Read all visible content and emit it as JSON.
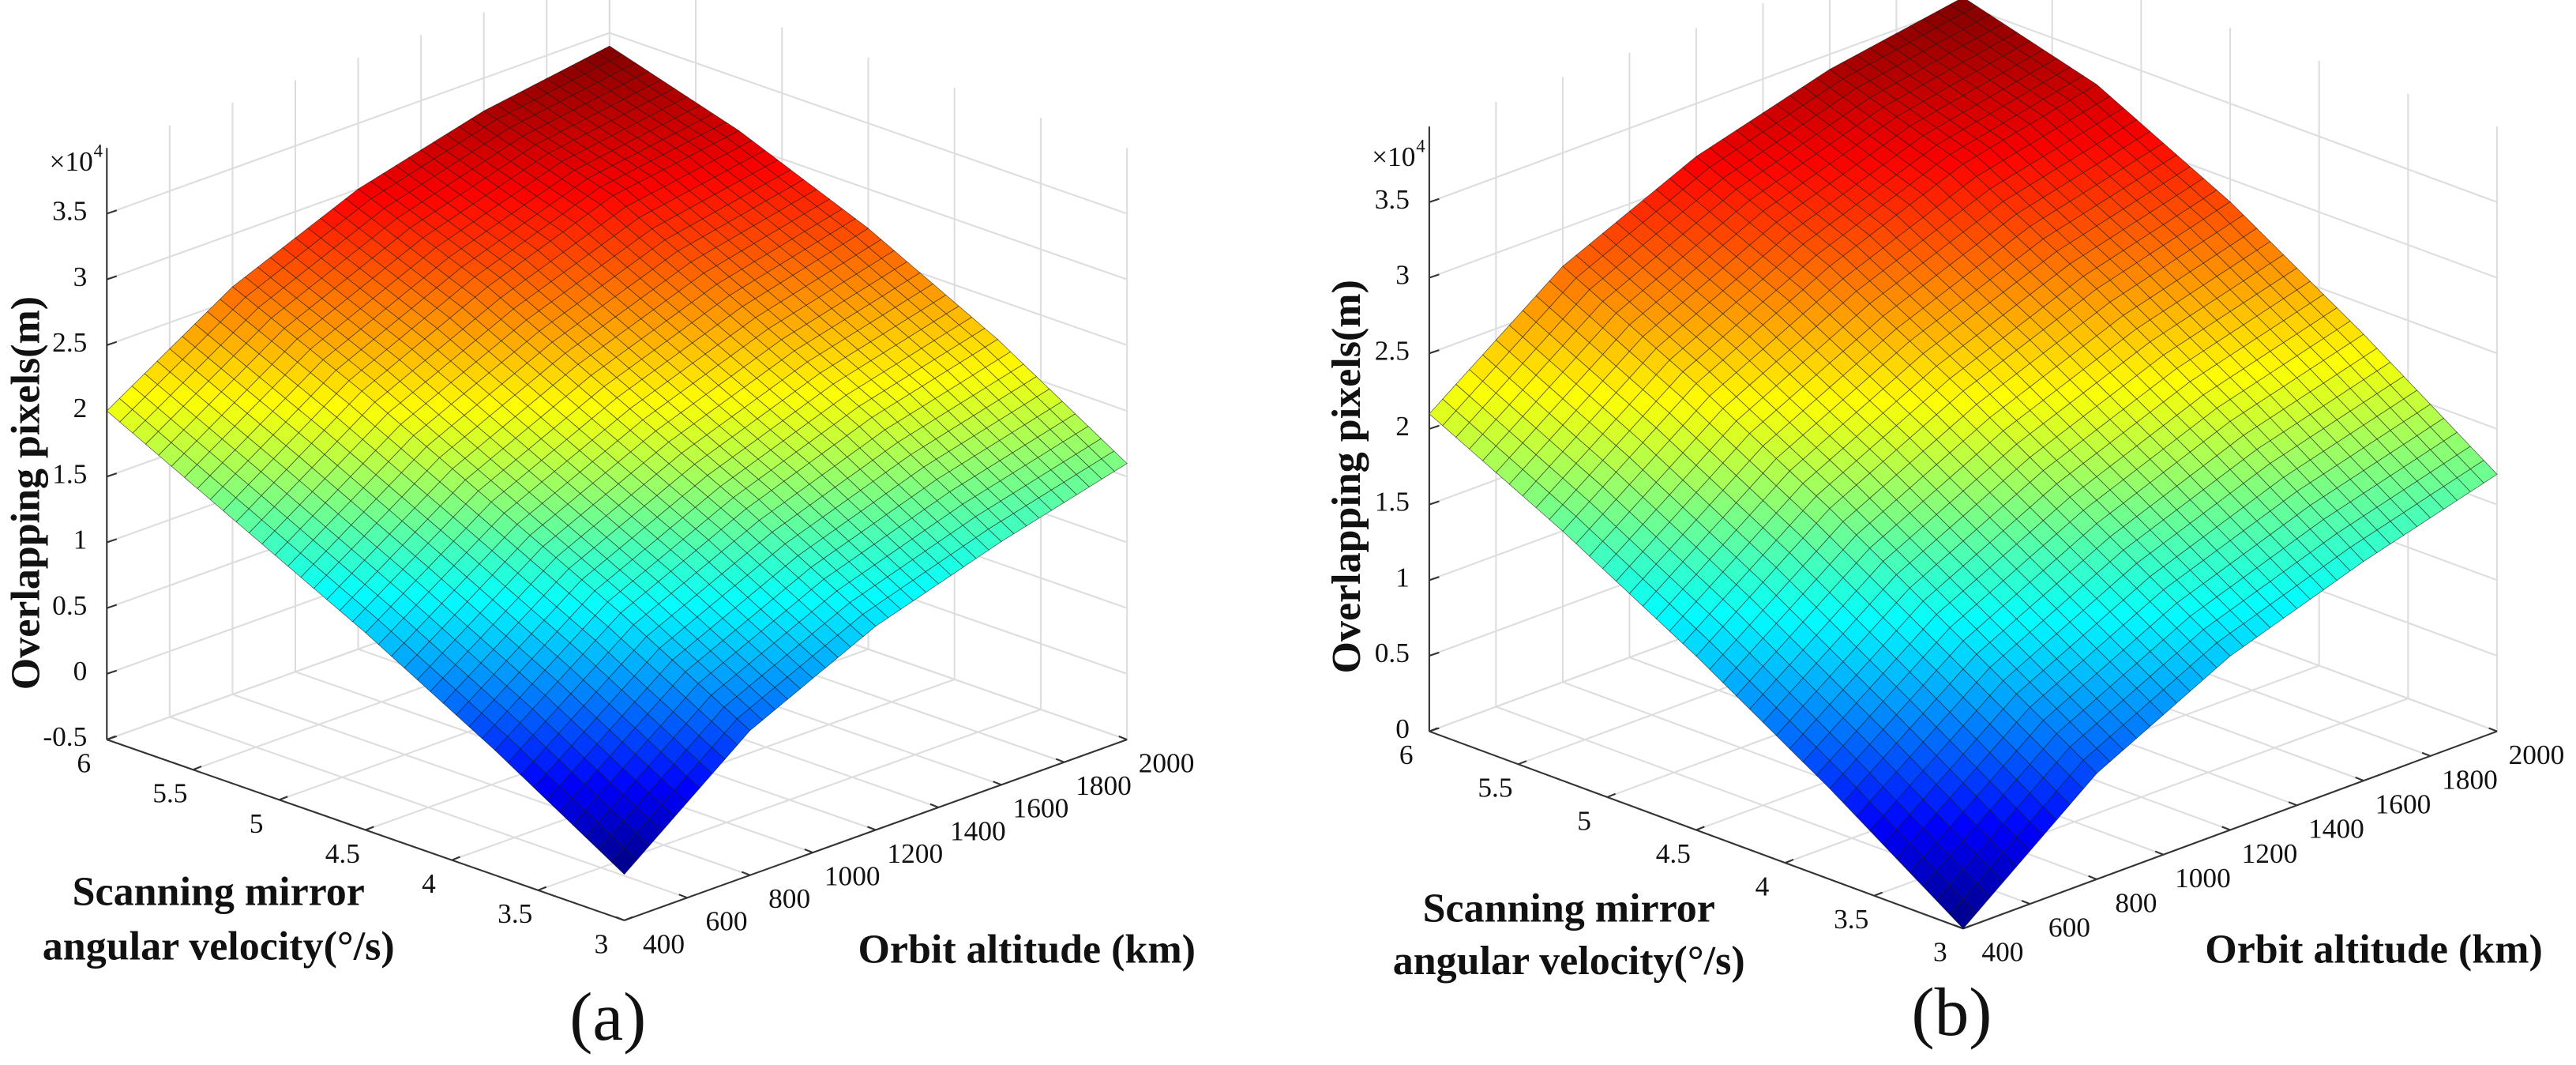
{
  "chart_data": [
    {
      "type": "surface",
      "colormap": "jet",
      "caption": "(a)",
      "xlabel": "Orbit altitude (km)",
      "ylabel": [
        "Scanning mirror",
        "angular velocity(°/s)"
      ],
      "zlabel": "Overlapping pixels(m)",
      "z_scale_label": {
        "base": "×10",
        "exponent": "4"
      },
      "x": [
        400,
        800,
        1200,
        1600,
        2000
      ],
      "y": [
        3,
        3.75,
        4.5,
        5.25,
        6
      ],
      "z": [
        [
          -0.15,
          0.6,
          1.05,
          1.35,
          1.6
        ],
        [
          0.45,
          1.15,
          1.6,
          1.95,
          2.2
        ],
        [
          1.0,
          1.65,
          2.1,
          2.45,
          2.7
        ],
        [
          1.5,
          2.15,
          2.6,
          2.95,
          3.1
        ],
        [
          2.0,
          2.6,
          3.0,
          3.25,
          3.4
        ]
      ],
      "xlim": [
        400,
        2000
      ],
      "xticks": [
        400,
        600,
        800,
        1000,
        1200,
        1400,
        1600,
        1800,
        2000
      ],
      "ylim": [
        3,
        6
      ],
      "yticks": [
        3,
        3.5,
        4,
        4.5,
        5,
        5.5,
        6
      ],
      "zlim": [
        -0.5,
        4
      ],
      "zticks": [
        -0.5,
        0,
        0.5,
        1,
        1.5,
        2,
        2.5,
        3,
        3.5
      ],
      "grid": true
    },
    {
      "type": "surface",
      "colormap": "jet",
      "caption": "(b)",
      "xlabel": "Orbit altitude (km)",
      "ylabel": [
        "Scanning mirror",
        "angular velocity(°/s)"
      ],
      "zlabel": "Overlapping pixels(m)",
      "z_scale_label": {
        "base": "×10",
        "exponent": "4"
      },
      "x": [
        400,
        800,
        1200,
        1600,
        2000
      ],
      "y": [
        3,
        3.75,
        4.5,
        5.25,
        6
      ],
      "z": [
        [
          0.0,
          0.7,
          1.15,
          1.45,
          1.7
        ],
        [
          0.6,
          1.25,
          1.7,
          2.05,
          2.3
        ],
        [
          1.15,
          1.8,
          2.25,
          2.6,
          2.85
        ],
        [
          1.65,
          2.3,
          2.75,
          3.1,
          3.3
        ],
        [
          2.1,
          2.75,
          3.15,
          3.4,
          3.55
        ]
      ],
      "xlim": [
        400,
        2000
      ],
      "xticks": [
        400,
        600,
        800,
        1000,
        1200,
        1400,
        1600,
        1800,
        2000
      ],
      "ylim": [
        3,
        6
      ],
      "yticks": [
        3,
        3.5,
        4,
        4.5,
        5,
        5.5,
        6
      ],
      "zlim": [
        0,
        4
      ],
      "zticks": [
        0,
        0.5,
        1,
        1.5,
        2,
        2.5,
        3,
        3.5
      ],
      "grid": true
    }
  ]
}
